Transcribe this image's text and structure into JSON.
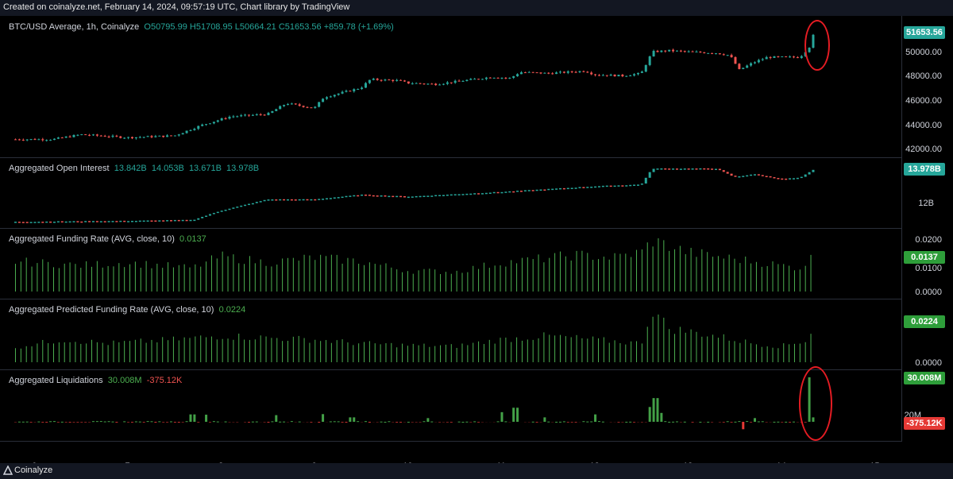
{
  "header": {
    "created_text": "Created on coinalyze.net, February 14, 2024, 09:57:19 UTC, Chart library by TradingView"
  },
  "footer": {
    "brand": "Coinalyze"
  },
  "colors": {
    "up": "#26a69a",
    "down": "#ef5350",
    "funding": "#4caf50",
    "liq_pos": "#43a047",
    "liq_neg": "#e53935",
    "highlight": "#e51c23"
  },
  "chart_data": [
    {
      "type": "candlestick",
      "legend": {
        "name": "BTC/USD Average, 1h, Coinalyze",
        "o": "O50795.99",
        "h": "H51708.95",
        "l": "L50664.21",
        "c": "C51653.56",
        "chg": "+859.78 (+1.69%)"
      },
      "y_ticks": [
        "51653.56",
        "50000.00",
        "48000.00",
        "46000.00",
        "44000.00",
        "42000.00"
      ],
      "ylim": [
        41700,
        52300
      ],
      "last_value": "51653.56",
      "x_days": [
        "6",
        "7",
        "8",
        "9",
        "10",
        "11",
        "12",
        "13",
        "14",
        "15"
      ],
      "close_anchors": [
        [
          5.8,
          42800
        ],
        [
          6.2,
          42800
        ],
        [
          6.5,
          43200
        ],
        [
          7.0,
          42950
        ],
        [
          7.5,
          43100
        ],
        [
          7.8,
          44000
        ],
        [
          8.1,
          44700
        ],
        [
          8.5,
          44900
        ],
        [
          8.7,
          45800
        ],
        [
          9.0,
          45400
        ],
        [
          9.1,
          46300
        ],
        [
          9.5,
          47100
        ],
        [
          9.6,
          47800
        ],
        [
          9.9,
          47700
        ],
        [
          10.0,
          47500
        ],
        [
          10.3,
          47400
        ],
        [
          10.6,
          47700
        ],
        [
          10.9,
          48000
        ],
        [
          11.1,
          47900
        ],
        [
          11.2,
          48400
        ],
        [
          11.5,
          48300
        ],
        [
          11.9,
          48500
        ],
        [
          12.0,
          48200
        ],
        [
          12.3,
          48100
        ],
        [
          12.5,
          48300
        ],
        [
          12.62,
          50100
        ],
        [
          12.8,
          50200
        ],
        [
          13.0,
          50100
        ],
        [
          13.3,
          50000
        ],
        [
          13.45,
          49800
        ],
        [
          13.55,
          48600
        ],
        [
          13.7,
          49200
        ],
        [
          13.85,
          49650
        ],
        [
          14.2,
          49650
        ],
        [
          14.3,
          50500
        ],
        [
          14.35,
          51650
        ]
      ]
    },
    {
      "type": "line-candles",
      "legend": {
        "name": "Aggregated Open Interest",
        "o": "13.842B",
        "h": "14.053B",
        "l": "13.671B",
        "c": "13.978B"
      },
      "y_ticks": [
        "12B"
      ],
      "ylim": [
        11.0,
        14.4
      ],
      "last_value": "13.978B",
      "anchors": [
        [
          5.8,
          11.2
        ],
        [
          7.0,
          11.25
        ],
        [
          7.7,
          11.3
        ],
        [
          8.0,
          11.8
        ],
        [
          8.5,
          12.4
        ],
        [
          9.0,
          12.4
        ],
        [
          9.5,
          12.65
        ],
        [
          10.0,
          12.55
        ],
        [
          11.0,
          12.8
        ],
        [
          12.0,
          13.1
        ],
        [
          12.5,
          13.2
        ],
        [
          12.62,
          14.05
        ],
        [
          13.3,
          14.05
        ],
        [
          13.5,
          13.6
        ],
        [
          13.7,
          13.75
        ],
        [
          14.0,
          13.5
        ],
        [
          14.2,
          13.55
        ],
        [
          14.35,
          14.0
        ]
      ]
    },
    {
      "type": "bar",
      "legend": {
        "name": "Aggregated Funding Rate (AVG, close, 10)",
        "value": "0.0137"
      },
      "y_ticks": [
        "0.0200",
        "0.0100",
        "0.0000"
      ],
      "ylim": [
        0,
        0.023
      ],
      "last_value": "0.0137",
      "anchors": [
        [
          5.8,
          0.0115
        ],
        [
          6.5,
          0.01
        ],
        [
          7.0,
          0.011
        ],
        [
          7.7,
          0.009
        ],
        [
          8.0,
          0.0135
        ],
        [
          8.5,
          0.011
        ],
        [
          9.0,
          0.013
        ],
        [
          9.5,
          0.0115
        ],
        [
          10.0,
          0.008
        ],
        [
          10.5,
          0.0075
        ],
        [
          11.0,
          0.011
        ],
        [
          11.3,
          0.012
        ],
        [
          11.8,
          0.014
        ],
        [
          12.2,
          0.013
        ],
        [
          12.5,
          0.015
        ],
        [
          12.62,
          0.0195
        ],
        [
          13.0,
          0.015
        ],
        [
          13.4,
          0.013
        ],
        [
          13.7,
          0.0115
        ],
        [
          14.2,
          0.009
        ],
        [
          14.35,
          0.0137
        ]
      ]
    },
    {
      "type": "bar",
      "legend": {
        "name": "Aggregated Predicted Funding Rate (AVG, close, 10)",
        "value": "0.0224"
      },
      "y_ticks": [
        "0.0000"
      ],
      "ylim": [
        0,
        0.032
      ],
      "last_value": "0.0224",
      "anchors": [
        [
          5.8,
          0.008
        ],
        [
          6.3,
          0.012
        ],
        [
          6.8,
          0.01
        ],
        [
          7.5,
          0.012
        ],
        [
          8.0,
          0.014
        ],
        [
          8.5,
          0.013
        ],
        [
          9.0,
          0.012
        ],
        [
          9.5,
          0.01
        ],
        [
          10.0,
          0.009
        ],
        [
          10.5,
          0.0085
        ],
        [
          11.0,
          0.012
        ],
        [
          11.5,
          0.014
        ],
        [
          12.0,
          0.012
        ],
        [
          12.5,
          0.01
        ],
        [
          12.62,
          0.028
        ],
        [
          12.8,
          0.018
        ],
        [
          13.3,
          0.014
        ],
        [
          13.7,
          0.01
        ],
        [
          14.0,
          0.0085
        ],
        [
          14.3,
          0.012
        ],
        [
          14.35,
          0.0224
        ]
      ]
    },
    {
      "type": "bar",
      "legend": {
        "name": "Aggregated Liquidations",
        "long": "30.008M",
        "short": "-375.12K"
      },
      "y_ticks": [
        "20M"
      ],
      "ylim": [
        -6000000,
        34000000
      ],
      "last_value_long": "30.008M",
      "last_value_short": "-375.12K",
      "spikes": [
        [
          7.7,
          5000000
        ],
        [
          7.85,
          4800000
        ],
        [
          8.6,
          4500000
        ],
        [
          9.1,
          5200000
        ],
        [
          9.4,
          3000000
        ],
        [
          10.2,
          2500000
        ],
        [
          11.0,
          6500000
        ],
        [
          11.15,
          9500000
        ],
        [
          11.45,
          3000000
        ],
        [
          12.0,
          5000000
        ],
        [
          12.6,
          10000000
        ],
        [
          12.62,
          12000000
        ],
        [
          12.65,
          16000000
        ],
        [
          12.7,
          6000000
        ],
        [
          13.6,
          -5000000
        ],
        [
          13.7,
          2500000
        ],
        [
          14.3,
          30008000
        ],
        [
          14.33,
          3000000
        ]
      ]
    }
  ]
}
